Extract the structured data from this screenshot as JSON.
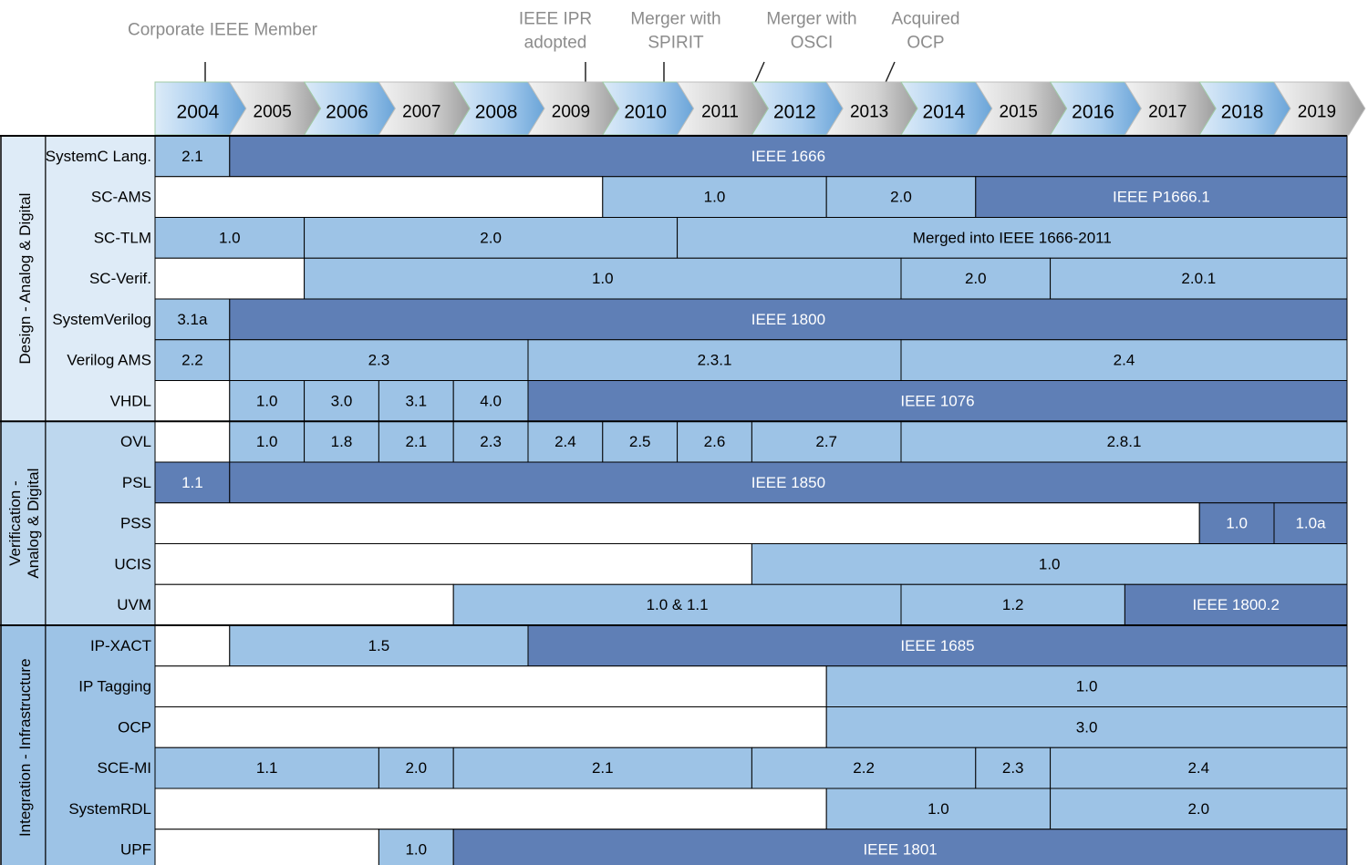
{
  "milestones": [
    {
      "lines": [
        "Corporate IEEE Member"
      ],
      "year": "2004"
    },
    {
      "lines": [
        "IEEE IPR",
        "adopted"
      ],
      "year": "2009"
    },
    {
      "lines": [
        "Merger with",
        "SPIRIT"
      ],
      "year": "2010"
    },
    {
      "lines": [
        "Merger with",
        "OSCI"
      ],
      "year": "2011"
    },
    {
      "lines": [
        "Acquired",
        "OCP"
      ],
      "year": "2013"
    }
  ],
  "years": [
    "2004",
    "2005",
    "2006",
    "2007",
    "2008",
    "2009",
    "2010",
    "2011",
    "2012",
    "2013",
    "2014",
    "2015",
    "2016",
    "2017",
    "2018",
    "2019"
  ],
  "colors": {
    "light_blue": "#9dc3e6",
    "dark_blue": "#5f7fb6",
    "white": "#ffffff",
    "group1_bg": "#deebf7",
    "group2_bg": "#bdd7ee",
    "group3_bg": "#9dc3e6",
    "arrow_blue": "#8dbbe3",
    "arrow_grey": "#bfbfbf"
  },
  "groups": [
    {
      "label": "Design - Analog & Digital",
      "rows": [
        {
          "name": "SystemC Lang.",
          "segs": [
            {
              "from": 2004,
              "to": 2005,
              "label": "2.1",
              "c": "light"
            },
            {
              "from": 2005,
              "to": 2020,
              "label": "IEEE 1666",
              "c": "dark"
            }
          ]
        },
        {
          "name": "SC-AMS",
          "segs": [
            {
              "from": 2004,
              "to": 2010,
              "label": "",
              "c": "white"
            },
            {
              "from": 2010,
              "to": 2013,
              "label": "1.0",
              "c": "light"
            },
            {
              "from": 2013,
              "to": 2015,
              "label": "2.0",
              "c": "light"
            },
            {
              "from": 2015,
              "to": 2020,
              "label": "IEEE P1666.1",
              "c": "dark"
            }
          ]
        },
        {
          "name": "SC-TLM",
          "segs": [
            {
              "from": 2004,
              "to": 2006,
              "label": "1.0",
              "c": "light"
            },
            {
              "from": 2006,
              "to": 2011,
              "label": "2.0",
              "c": "light"
            },
            {
              "from": 2011,
              "to": 2020,
              "label": "Merged into IEEE 1666-2011",
              "c": "light"
            }
          ]
        },
        {
          "name": "SC-Verif.",
          "segs": [
            {
              "from": 2004,
              "to": 2006,
              "label": "",
              "c": "white"
            },
            {
              "from": 2006,
              "to": 2014,
              "label": "1.0",
              "c": "light"
            },
            {
              "from": 2014,
              "to": 2016,
              "label": "2.0",
              "c": "light"
            },
            {
              "from": 2016,
              "to": 2020,
              "label": "2.0.1",
              "c": "light"
            }
          ]
        },
        {
          "name": "SystemVerilog",
          "segs": [
            {
              "from": 2004,
              "to": 2005,
              "label": "3.1a",
              "c": "light"
            },
            {
              "from": 2005,
              "to": 2020,
              "label": "IEEE 1800",
              "c": "dark"
            }
          ]
        },
        {
          "name": "Verilog AMS",
          "segs": [
            {
              "from": 2004,
              "to": 2005,
              "label": "2.2",
              "c": "light"
            },
            {
              "from": 2005,
              "to": 2009,
              "label": "2.3",
              "c": "light"
            },
            {
              "from": 2009,
              "to": 2014,
              "label": "2.3.1",
              "c": "light"
            },
            {
              "from": 2014,
              "to": 2020,
              "label": "2.4",
              "c": "light"
            }
          ]
        },
        {
          "name": "VHDL",
          "segs": [
            {
              "from": 2004,
              "to": 2005,
              "label": "",
              "c": "white"
            },
            {
              "from": 2005,
              "to": 2006,
              "label": "1.0",
              "c": "light"
            },
            {
              "from": 2006,
              "to": 2007,
              "label": "3.0",
              "c": "light"
            },
            {
              "from": 2007,
              "to": 2008,
              "label": "3.1",
              "c": "light"
            },
            {
              "from": 2008,
              "to": 2009,
              "label": "4.0",
              "c": "light"
            },
            {
              "from": 2009,
              "to": 2020,
              "label": "IEEE 1076",
              "c": "dark"
            }
          ]
        }
      ]
    },
    {
      "label": "Verification -|Analog & Digital",
      "rows": [
        {
          "name": "OVL",
          "segs": [
            {
              "from": 2004,
              "to": 2005,
              "label": "",
              "c": "white"
            },
            {
              "from": 2005,
              "to": 2006,
              "label": "1.0",
              "c": "light"
            },
            {
              "from": 2006,
              "to": 2007,
              "label": "1.8",
              "c": "light"
            },
            {
              "from": 2007,
              "to": 2008,
              "label": "2.1",
              "c": "light"
            },
            {
              "from": 2008,
              "to": 2009,
              "label": "2.3",
              "c": "light"
            },
            {
              "from": 2009,
              "to": 2010,
              "label": "2.4",
              "c": "light"
            },
            {
              "from": 2010,
              "to": 2011,
              "label": "2.5",
              "c": "light"
            },
            {
              "from": 2011,
              "to": 2012,
              "label": "2.6",
              "c": "light"
            },
            {
              "from": 2012,
              "to": 2014,
              "label": "2.7",
              "c": "light"
            },
            {
              "from": 2014,
              "to": 2020,
              "label": "2.8.1",
              "c": "light"
            }
          ]
        },
        {
          "name": "PSL",
          "segs": [
            {
              "from": 2004,
              "to": 2005,
              "label": "1.1",
              "c": "dark"
            },
            {
              "from": 2005,
              "to": 2020,
              "label": "IEEE 1850",
              "c": "dark"
            }
          ]
        },
        {
          "name": "PSS",
          "segs": [
            {
              "from": 2004,
              "to": 2018,
              "label": "",
              "c": "white"
            },
            {
              "from": 2018,
              "to": 2019,
              "label": "1.0",
              "c": "dark"
            },
            {
              "from": 2019,
              "to": 2020,
              "label": "1.0a",
              "c": "dark"
            }
          ]
        },
        {
          "name": "UCIS",
          "segs": [
            {
              "from": 2004,
              "to": 2012,
              "label": "",
              "c": "white"
            },
            {
              "from": 2012,
              "to": 2020,
              "label": "1.0",
              "c": "light"
            }
          ]
        },
        {
          "name": "UVM",
          "segs": [
            {
              "from": 2004,
              "to": 2008,
              "label": "",
              "c": "white"
            },
            {
              "from": 2008,
              "to": 2014,
              "label": "1.0  & 1.1",
              "c": "light"
            },
            {
              "from": 2014,
              "to": 2017,
              "label": "1.2",
              "c": "light"
            },
            {
              "from": 2017,
              "to": 2020,
              "label": "IEEE 1800.2",
              "c": "dark"
            }
          ]
        }
      ]
    },
    {
      "label": "Integration - Infrastructure",
      "rows": [
        {
          "name": "IP-XACT",
          "segs": [
            {
              "from": 2004,
              "to": 2005,
              "label": "",
              "c": "white"
            },
            {
              "from": 2005,
              "to": 2009,
              "label": "1.5",
              "c": "light"
            },
            {
              "from": 2009,
              "to": 2020,
              "label": "IEEE 1685",
              "c": "dark"
            }
          ]
        },
        {
          "name": "IP Tagging",
          "segs": [
            {
              "from": 2004,
              "to": 2013,
              "label": "",
              "c": "white"
            },
            {
              "from": 2013,
              "to": 2020,
              "label": "1.0",
              "c": "light"
            }
          ]
        },
        {
          "name": "OCP",
          "segs": [
            {
              "from": 2004,
              "to": 2013,
              "label": "",
              "c": "white"
            },
            {
              "from": 2013,
              "to": 2020,
              "label": "3.0",
              "c": "light"
            }
          ]
        },
        {
          "name": "SCE-MI",
          "segs": [
            {
              "from": 2004,
              "to": 2007,
              "label": "1.1",
              "c": "light"
            },
            {
              "from": 2007,
              "to": 2008,
              "label": "2.0",
              "c": "light"
            },
            {
              "from": 2008,
              "to": 2012,
              "label": "2.1",
              "c": "light"
            },
            {
              "from": 2012,
              "to": 2015,
              "label": "2.2",
              "c": "light"
            },
            {
              "from": 2015,
              "to": 2016,
              "label": "2.3",
              "c": "light"
            },
            {
              "from": 2016,
              "to": 2020,
              "label": "2.4",
              "c": "light"
            }
          ]
        },
        {
          "name": "SystemRDL",
          "segs": [
            {
              "from": 2004,
              "to": 2013,
              "label": "",
              "c": "white"
            },
            {
              "from": 2013,
              "to": 2016,
              "label": "1.0",
              "c": "light"
            },
            {
              "from": 2016,
              "to": 2020,
              "label": "2.0",
              "c": "light"
            }
          ]
        },
        {
          "name": "UPF",
          "segs": [
            {
              "from": 2004,
              "to": 2007,
              "label": "",
              "c": "white"
            },
            {
              "from": 2007,
              "to": 2008,
              "label": "1.0",
              "c": "light"
            },
            {
              "from": 2008,
              "to": 2020,
              "label": "IEEE 1801",
              "c": "dark"
            }
          ]
        }
      ]
    }
  ]
}
